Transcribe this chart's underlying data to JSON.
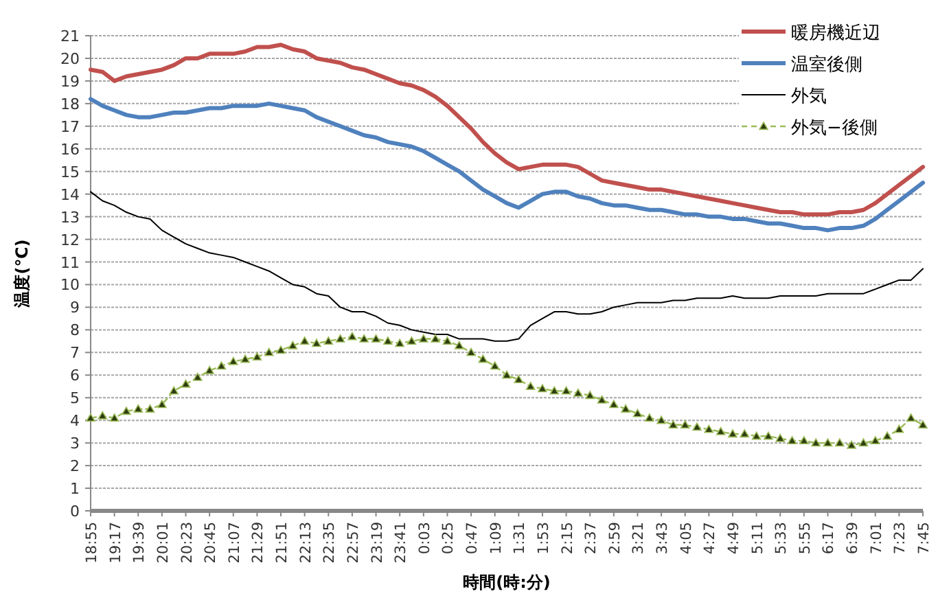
{
  "chart_data": {
    "type": "line",
    "xlabel": "時間(時:分)",
    "ylabel": "温度(℃)",
    "categories": [
      "18:55",
      null,
      "19:17",
      null,
      "19:39",
      null,
      "20:01",
      null,
      "20:23",
      null,
      "20:45",
      null,
      "21:07",
      null,
      "21:29",
      null,
      "21:51",
      null,
      "22:13",
      null,
      "22:35",
      null,
      "22:57",
      null,
      "23:19",
      null,
      "23:41",
      null,
      "0:03",
      null,
      "0:25",
      null,
      "0:47",
      null,
      "1:09",
      null,
      "1:31",
      null,
      "1:53",
      null,
      "2:15",
      null,
      "2:37",
      null,
      "2:59",
      null,
      "3:21",
      null,
      "3:43",
      null,
      "4:05",
      null,
      "4:27",
      null,
      "4:49",
      null,
      "5:11",
      null,
      "5:33",
      null,
      "5:55",
      null,
      "6:17",
      null,
      "6:39",
      null,
      "7:01",
      null,
      "7:23",
      null,
      "7:45"
    ],
    "ylim": [
      0,
      21
    ],
    "yticks": [
      0,
      1,
      2,
      3,
      4,
      5,
      6,
      7,
      8,
      9,
      10,
      11,
      12,
      13,
      14,
      15,
      16,
      17,
      18,
      19,
      20,
      21
    ],
    "grid": "y",
    "legend": "top right",
    "series": [
      {
        "name": "暖房機近辺",
        "color": "#c0504d",
        "line_style": "solid",
        "marker": "none",
        "values": [
          19.5,
          19.4,
          19.0,
          19.2,
          19.3,
          19.4,
          19.5,
          19.7,
          20.0,
          20.0,
          20.2,
          20.2,
          20.2,
          20.3,
          20.5,
          20.5,
          20.6,
          20.4,
          20.3,
          20.0,
          19.9,
          19.8,
          19.6,
          19.5,
          19.3,
          19.1,
          18.9,
          18.8,
          18.6,
          18.3,
          17.9,
          17.4,
          16.9,
          16.3,
          15.8,
          15.4,
          15.1,
          15.2,
          15.3,
          15.3,
          15.3,
          15.2,
          14.9,
          14.6,
          14.5,
          14.4,
          14.3,
          14.2,
          14.2,
          14.1,
          14.0,
          13.9,
          13.8,
          13.7,
          13.6,
          13.5,
          13.4,
          13.3,
          13.2,
          13.2,
          13.1,
          13.1,
          13.1,
          13.2,
          13.2,
          13.3,
          13.6,
          14.0,
          14.4,
          14.8,
          15.2
        ]
      },
      {
        "name": "温室後側",
        "color": "#4f81bd",
        "line_style": "solid",
        "marker": "none",
        "values": [
          18.2,
          17.9,
          17.7,
          17.5,
          17.4,
          17.4,
          17.5,
          17.6,
          17.6,
          17.7,
          17.8,
          17.8,
          17.9,
          17.9,
          17.9,
          18.0,
          17.9,
          17.8,
          17.7,
          17.4,
          17.2,
          17.0,
          16.8,
          16.6,
          16.5,
          16.3,
          16.2,
          16.1,
          15.9,
          15.6,
          15.3,
          15.0,
          14.6,
          14.2,
          13.9,
          13.6,
          13.4,
          13.7,
          14.0,
          14.1,
          14.1,
          13.9,
          13.8,
          13.6,
          13.5,
          13.5,
          13.4,
          13.3,
          13.3,
          13.2,
          13.1,
          13.1,
          13.0,
          13.0,
          12.9,
          12.9,
          12.8,
          12.7,
          12.7,
          12.6,
          12.5,
          12.5,
          12.4,
          12.5,
          12.5,
          12.6,
          12.9,
          13.3,
          13.7,
          14.1,
          14.5
        ]
      },
      {
        "name": "外気",
        "color": "#000000",
        "line_style": "solid",
        "marker": "none",
        "values": [
          14.1,
          13.7,
          13.5,
          13.2,
          13.0,
          12.9,
          12.4,
          12.1,
          11.8,
          11.6,
          11.4,
          11.3,
          11.2,
          11.0,
          10.8,
          10.6,
          10.3,
          10.0,
          9.9,
          9.6,
          9.5,
          9.0,
          8.8,
          8.8,
          8.6,
          8.3,
          8.2,
          8.0,
          7.9,
          7.8,
          7.8,
          7.6,
          7.6,
          7.6,
          7.5,
          7.5,
          7.6,
          8.2,
          8.5,
          8.8,
          8.8,
          8.7,
          8.7,
          8.8,
          9.0,
          9.1,
          9.2,
          9.2,
          9.2,
          9.3,
          9.3,
          9.4,
          9.4,
          9.4,
          9.5,
          9.4,
          9.4,
          9.4,
          9.5,
          9.5,
          9.5,
          9.5,
          9.6,
          9.6,
          9.6,
          9.6,
          9.8,
          10.0,
          10.2,
          10.2,
          10.7
        ]
      },
      {
        "name": "外気−後側",
        "color": "#9bbb59",
        "line_style": "dashed",
        "marker": "triangle",
        "values": [
          4.1,
          4.2,
          4.1,
          4.4,
          4.5,
          4.5,
          4.7,
          5.3,
          5.6,
          5.9,
          6.2,
          6.4,
          6.6,
          6.7,
          6.8,
          7.0,
          7.1,
          7.3,
          7.5,
          7.4,
          7.5,
          7.6,
          7.7,
          7.6,
          7.6,
          7.5,
          7.4,
          7.5,
          7.6,
          7.6,
          7.5,
          7.3,
          7.0,
          6.7,
          6.4,
          6.0,
          5.8,
          5.5,
          5.4,
          5.3,
          5.3,
          5.2,
          5.1,
          4.9,
          4.7,
          4.5,
          4.3,
          4.1,
          4.0,
          3.8,
          3.8,
          3.7,
          3.6,
          3.5,
          3.4,
          3.4,
          3.3,
          3.3,
          3.2,
          3.1,
          3.1,
          3.0,
          3.0,
          3.0,
          2.9,
          3.0,
          3.1,
          3.3,
          3.6,
          4.1,
          3.8
        ]
      }
    ]
  }
}
